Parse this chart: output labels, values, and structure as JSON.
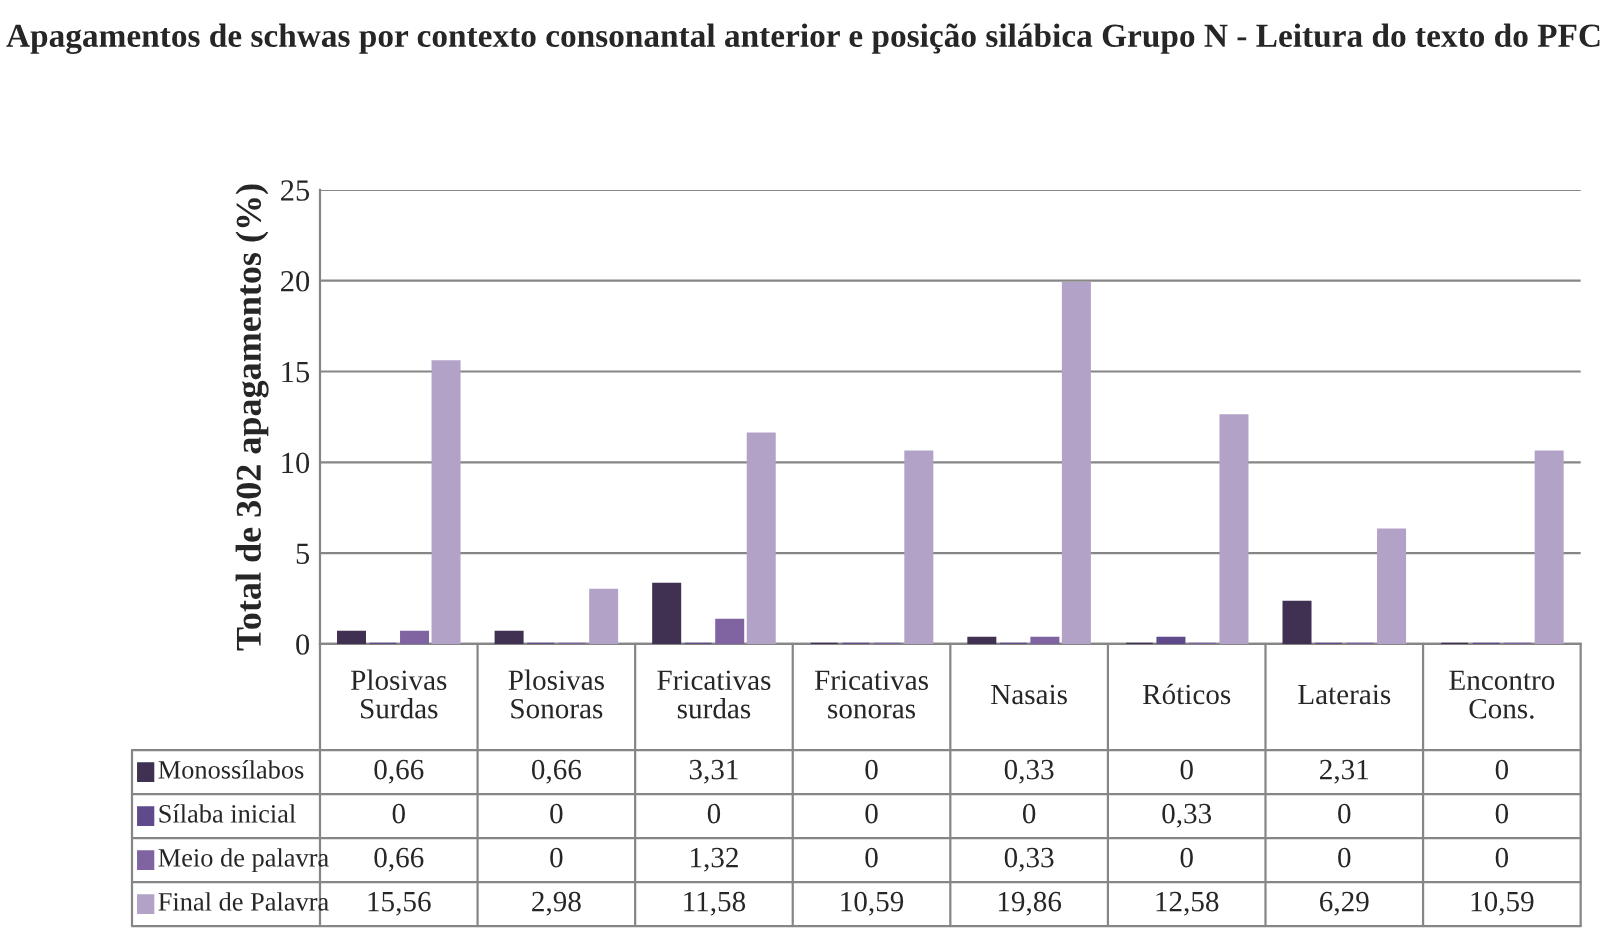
{
  "chart_data": {
    "type": "bar",
    "title": "Apagamentos de schwas por contexto consonantal anterior e posição silábica Grupo N - Leitura do texto do PFC",
    "ylabel": "Total de 302 apagamentos (%)",
    "categories": [
      "Plosivas Surdas",
      "Plosivas Sonoras",
      "Fricativas surdas",
      "Fricativas sonoras",
      "Nasais",
      "Róticos",
      "Laterais",
      "Encontro Cons."
    ],
    "series": [
      {
        "name": "Monossílabos",
        "color": "#403152",
        "values": [
          0.66,
          0.66,
          3.31,
          0,
          0.33,
          0,
          2.31,
          0
        ],
        "value_labels": [
          "0,66",
          "0,66",
          "3,31",
          "0",
          "0,33",
          "0",
          "2,31",
          "0"
        ]
      },
      {
        "name": "Sílaba inicial",
        "color": "#5f4a8b",
        "values": [
          0,
          0,
          0,
          0,
          0,
          0.33,
          0,
          0
        ],
        "value_labels": [
          "0",
          "0",
          "0",
          "0",
          "0",
          "0,33",
          "0",
          "0"
        ]
      },
      {
        "name": "Meio de palavra",
        "color": "#8064a2",
        "values": [
          0.66,
          0,
          1.32,
          0,
          0.33,
          0,
          0,
          0
        ],
        "value_labels": [
          "0,66",
          "0",
          "1,32",
          "0",
          "0,33",
          "0",
          "0",
          "0"
        ]
      },
      {
        "name": "Final de Palavra",
        "color": "#b3a2c7",
        "values": [
          15.56,
          2.98,
          11.58,
          10.59,
          19.86,
          12.58,
          6.29,
          10.59
        ],
        "value_labels": [
          "15,56",
          "2,98",
          "11,58",
          "10,59",
          "19,86",
          "12,58",
          "6,29",
          "10,59"
        ]
      }
    ],
    "ylim": [
      0,
      25
    ],
    "yticks": [
      0,
      5,
      10,
      15,
      20,
      25
    ],
    "grid": "y",
    "legend": "bottom"
  }
}
